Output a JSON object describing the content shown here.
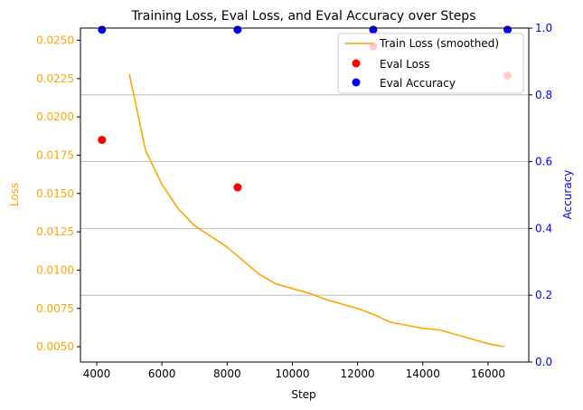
{
  "chart_data": {
    "type": "line",
    "title": "Training Loss, Eval Loss, and Eval Accuracy over Steps",
    "xlabel": "Step",
    "ylabel_left": "Loss",
    "ylabel_right": "Accuracy",
    "xlim": [
      3500,
      17250
    ],
    "ylim_left": [
      0.004,
      0.0258
    ],
    "ylim_right": [
      0.0,
      1.0
    ],
    "x_ticks": [
      4000,
      6000,
      8000,
      10000,
      12000,
      14000,
      16000
    ],
    "y_left_ticks": [
      0.005,
      0.0075,
      0.01,
      0.0125,
      0.015,
      0.0175,
      0.02,
      0.0225,
      0.025
    ],
    "y_left_tick_labels": [
      "0.0050",
      "0.0075",
      "0.0100",
      "0.0125",
      "0.0150",
      "0.0175",
      "0.0200",
      "0.0225",
      "0.0250"
    ],
    "y_right_ticks": [
      0.0,
      0.2,
      0.4,
      0.6,
      0.8,
      1.0
    ],
    "y_right_tick_labels": [
      "0.0",
      "0.2",
      "0.4",
      "0.6",
      "0.8",
      "1.0"
    ],
    "grid": "horizontal lines at right-axis ticks",
    "legend_position": "upper-right",
    "colors": {
      "train": "#ffa500",
      "eval_loss": "#ff0000",
      "eval_accuracy": "#0000ff",
      "left_axis": "#ffa500",
      "right_axis": "#0000ff",
      "grid": "#b0b0b0"
    },
    "series": [
      {
        "name": "Train Loss (smoothed)",
        "kind": "line",
        "axis": "left",
        "x": [
          5000,
          5500,
          6000,
          6500,
          7000,
          7500,
          8000,
          8500,
          9000,
          9500,
          10000,
          10500,
          11000,
          11500,
          12000,
          12500,
          13000,
          13500,
          14000,
          14500,
          15000,
          15500,
          16000,
          16500
        ],
        "y": [
          0.0228,
          0.0178,
          0.0156,
          0.014,
          0.0129,
          0.0122,
          0.0115,
          0.0106,
          0.0097,
          0.0091,
          0.0088,
          0.0085,
          0.0081,
          0.0078,
          0.0075,
          0.0071,
          0.0066,
          0.0064,
          0.0062,
          0.0061,
          0.0058,
          0.0055,
          0.0052,
          0.005
        ]
      },
      {
        "name": "Eval Loss",
        "kind": "scatter",
        "axis": "left",
        "x": [
          4160,
          8320,
          12480,
          16600
        ],
        "y": [
          0.0185,
          0.0154,
          0.0246,
          0.0227
        ]
      },
      {
        "name": "Eval Accuracy",
        "kind": "scatter",
        "axis": "right",
        "x": [
          4160,
          8320,
          12480,
          16600
        ],
        "y": [
          0.995,
          0.995,
          0.995,
          0.995
        ]
      }
    ]
  }
}
